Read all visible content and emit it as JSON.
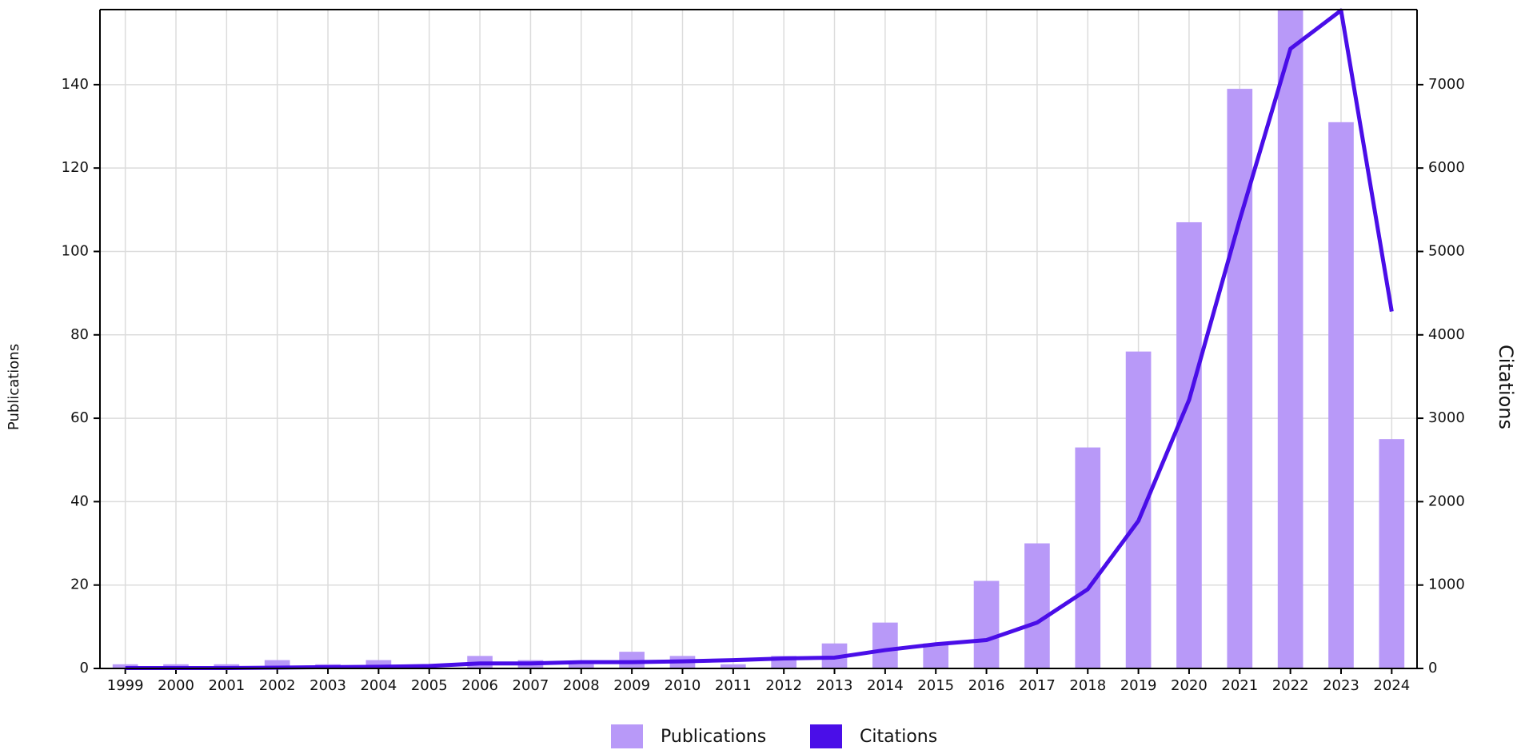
{
  "chart_data": {
    "type": "combo",
    "y_label": "Publications",
    "y2_label": "Citations",
    "categories": [
      "1999",
      "2000",
      "2001",
      "2002",
      "2003",
      "2004",
      "2005",
      "2006",
      "2007",
      "2008",
      "2009",
      "2010",
      "2011",
      "2012",
      "2013",
      "2014",
      "2015",
      "2016",
      "2017",
      "2018",
      "2019",
      "2020",
      "2021",
      "2022",
      "2023",
      "2024"
    ],
    "series": [
      {
        "name": "Publications",
        "type": "bar",
        "color": "#b899f8",
        "values": [
          1,
          1,
          1,
          2,
          1,
          2,
          0,
          3,
          2,
          1,
          4,
          3,
          1,
          3,
          6,
          11,
          6,
          21,
          30,
          53,
          76,
          107,
          139,
          158,
          131,
          55
        ]
      },
      {
        "name": "Citations",
        "type": "line",
        "axis": "y2",
        "color": "#4a0ee8",
        "values": [
          5,
          5,
          5,
          10,
          15,
          20,
          30,
          60,
          60,
          75,
          75,
          85,
          100,
          120,
          130,
          220,
          290,
          340,
          550,
          950,
          1770,
          3220,
          5380,
          7430,
          7890,
          4280
        ]
      }
    ],
    "ylim": [
      0,
      158
    ],
    "yticks": [
      0,
      20,
      40,
      60,
      80,
      100,
      120,
      140
    ],
    "y2lim": [
      0,
      7900
    ],
    "y2ticks": [
      0,
      1000,
      2000,
      3000,
      4000,
      5000,
      6000,
      7000
    ],
    "grid": true
  }
}
